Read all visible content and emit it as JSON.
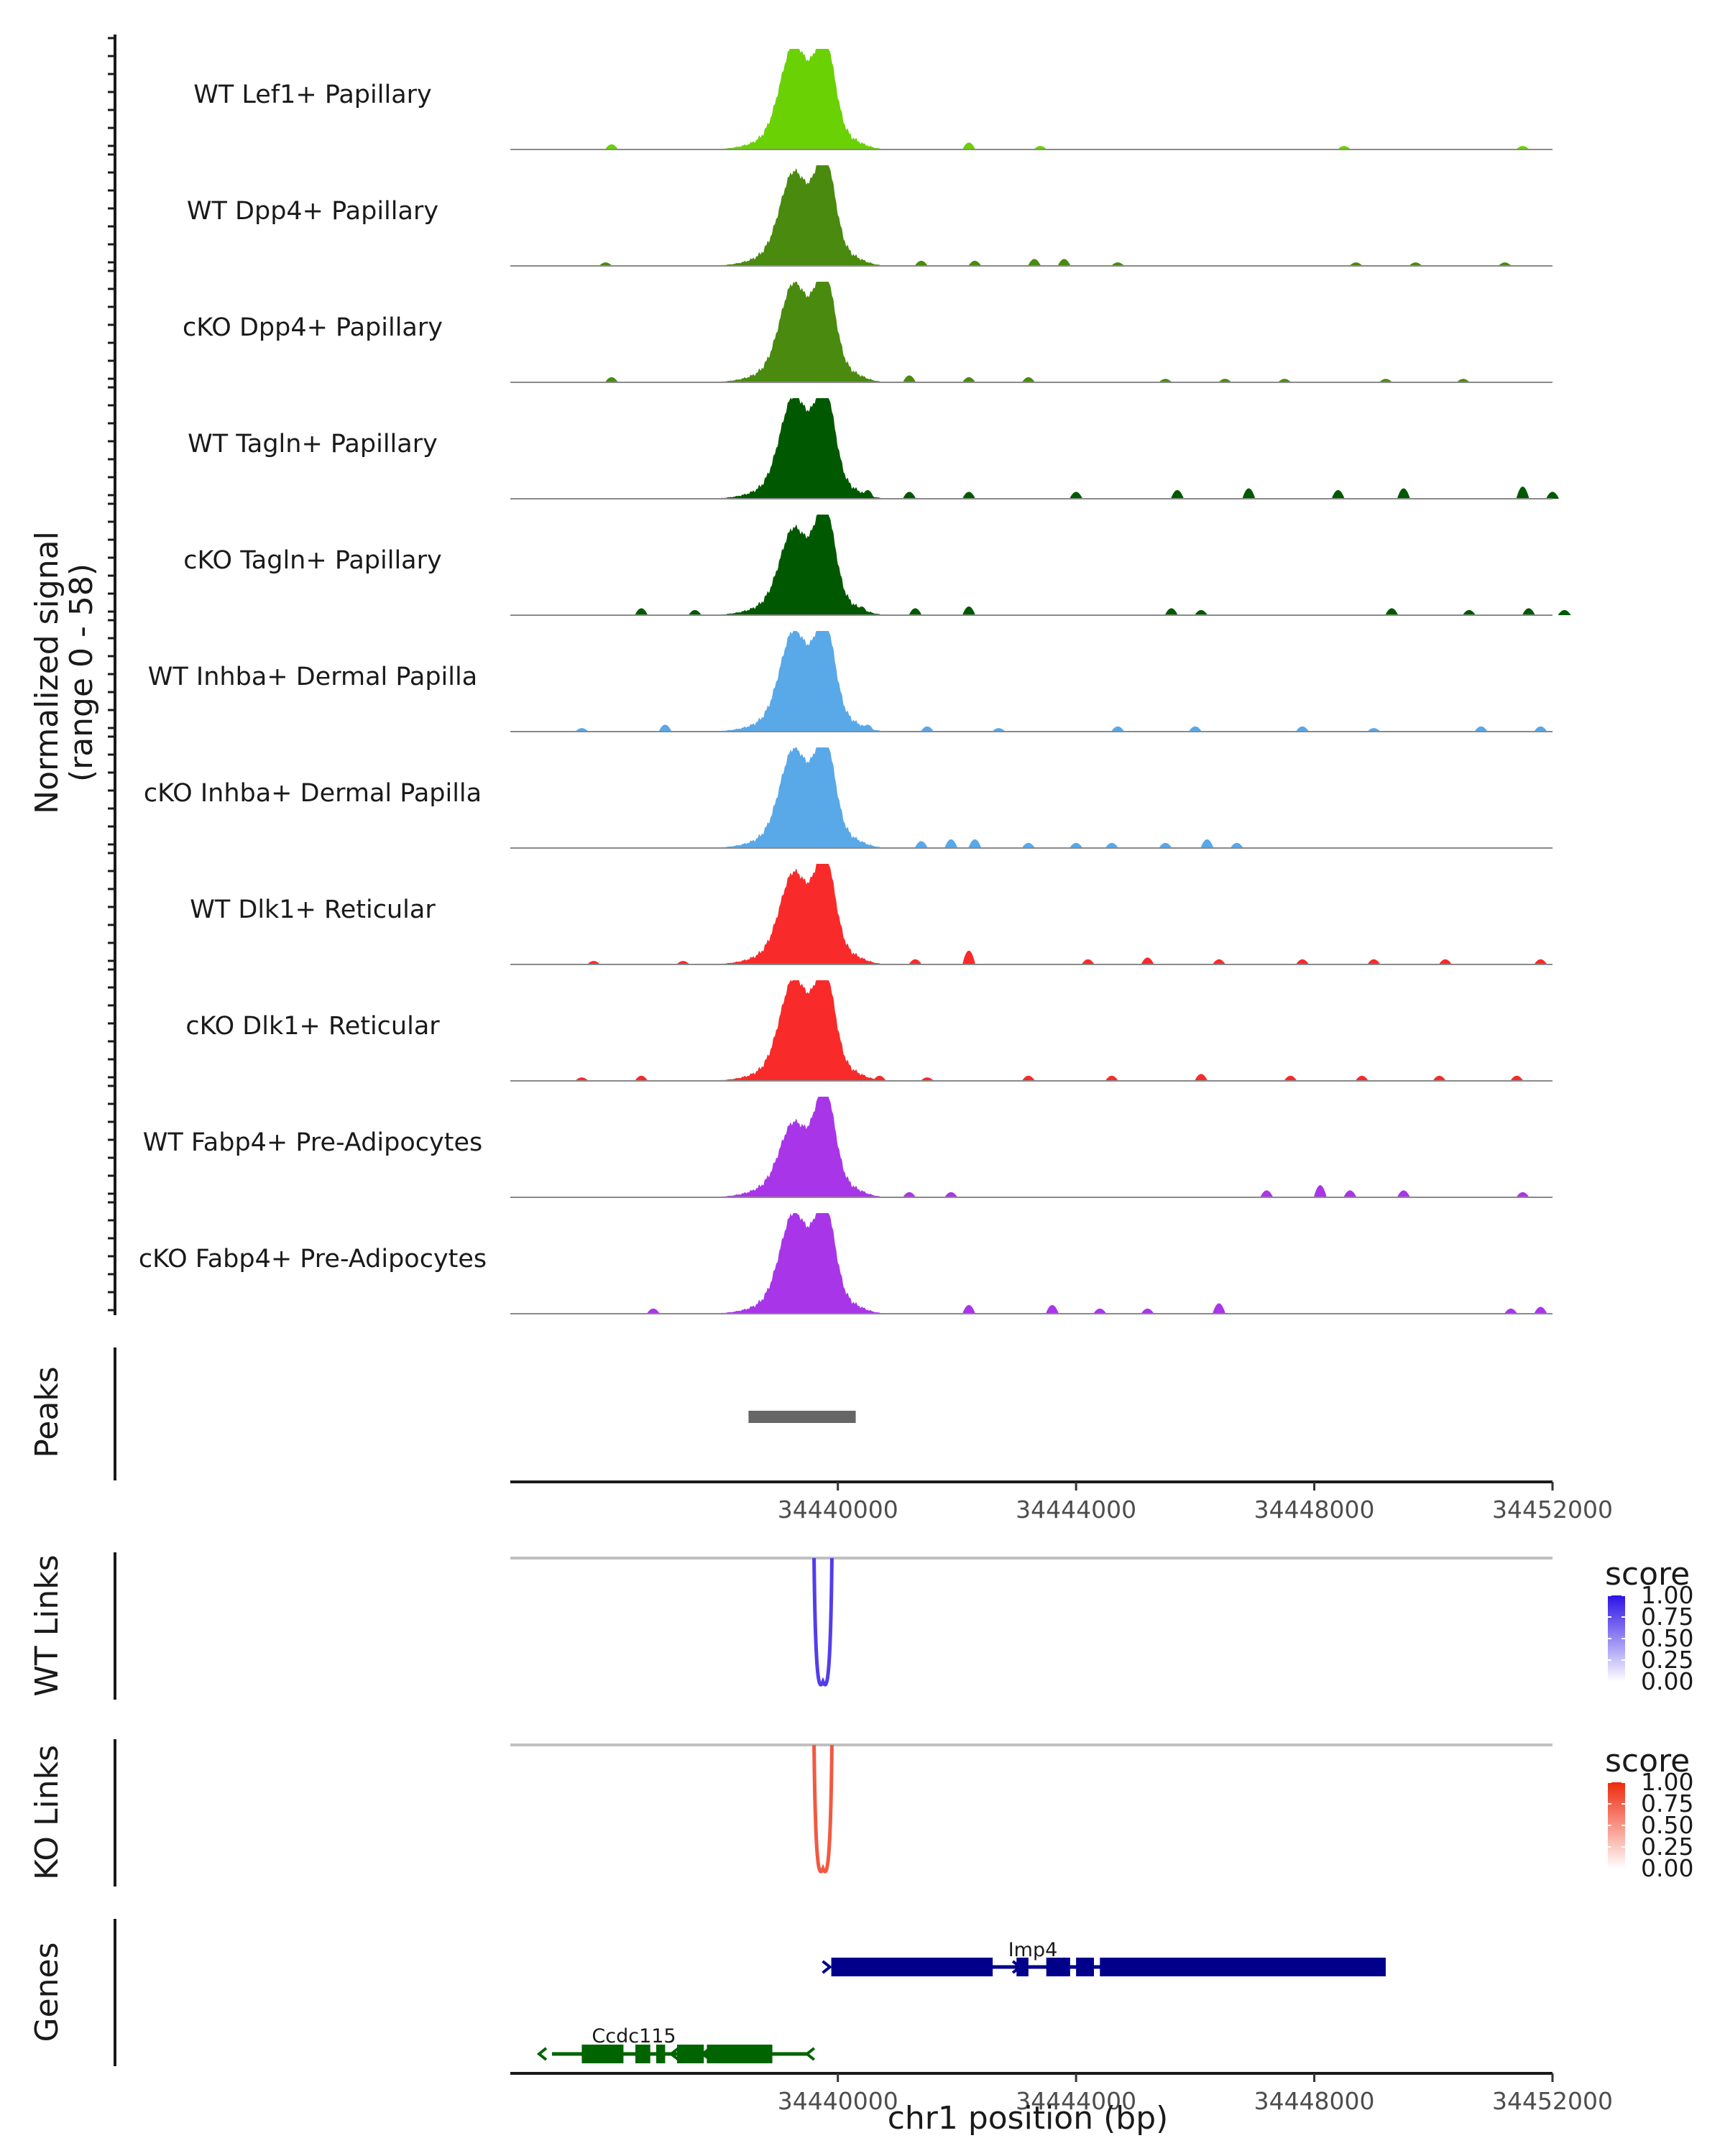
{
  "chart_data": {
    "type": "genome_coverage",
    "region": {
      "chromosome": "chr1",
      "start": 34434500,
      "end": 34452000
    },
    "coverage": {
      "ylabel": "Normalized signal",
      "ylabel_range": "(range 0 - 58)",
      "ylim": [
        0,
        58
      ],
      "tracks": [
        {
          "name": "WT Lef1+ Papillary",
          "color": "#6ad104",
          "peak1": 54,
          "peak2": 58,
          "bg": [
            [
              34436200,
              3
            ],
            [
              34439600,
              4
            ],
            [
              34442200,
              4
            ],
            [
              34443400,
              2
            ],
            [
              34448500,
              2
            ],
            [
              34451500,
              2
            ]
          ]
        },
        {
          "name": "WT Dpp4+ Papillary",
          "color": "#4a8a0f",
          "peak1": 48,
          "peak2": 58,
          "bg": [
            [
              34436100,
              2
            ],
            [
              34440200,
              4
            ],
            [
              34441400,
              3
            ],
            [
              34442300,
              3
            ],
            [
              34443300,
              4
            ],
            [
              34443800,
              4
            ],
            [
              34444700,
              2
            ],
            [
              34448700,
              2
            ],
            [
              34449700,
              2
            ],
            [
              34451200,
              2
            ]
          ]
        },
        {
          "name": "cKO Dpp4+ Papillary",
          "color": "#4a8a0f",
          "peak1": 51,
          "peak2": 58,
          "bg": [
            [
              34436200,
              3
            ],
            [
              34439800,
              5
            ],
            [
              34441200,
              4
            ],
            [
              34442200,
              3
            ],
            [
              34443200,
              3
            ],
            [
              34445500,
              2
            ],
            [
              34446500,
              2
            ],
            [
              34447500,
              2
            ],
            [
              34449200,
              2
            ],
            [
              34450500,
              2
            ]
          ]
        },
        {
          "name": "WT Tagln+ Papillary",
          "color": "#005900",
          "peak1": 53,
          "peak2": 58,
          "bg": [
            [
              34438800,
              5
            ],
            [
              34439700,
              6
            ],
            [
              34440500,
              5
            ],
            [
              34441200,
              4
            ],
            [
              34442200,
              4
            ],
            [
              34444000,
              4
            ],
            [
              34445700,
              5
            ],
            [
              34446900,
              6
            ],
            [
              34448400,
              5
            ],
            [
              34449500,
              6
            ],
            [
              34451500,
              7
            ],
            [
              34452000,
              4
            ]
          ]
        },
        {
          "name": "cKO Tagln+ Papillary",
          "color": "#005900",
          "peak1": 44,
          "peak2": 58,
          "bg": [
            [
              34436700,
              4
            ],
            [
              34437600,
              3
            ],
            [
              34440400,
              5
            ],
            [
              34441300,
              4
            ],
            [
              34442200,
              5
            ],
            [
              34445600,
              4
            ],
            [
              34446100,
              3
            ],
            [
              34449300,
              4
            ],
            [
              34450600,
              3
            ],
            [
              34451600,
              4
            ],
            [
              34452200,
              3
            ]
          ]
        },
        {
          "name": "WT Inhba+ Dermal Papilla",
          "color": "#59a8e8",
          "peak1": 52,
          "peak2": 58,
          "bg": [
            [
              34435700,
              2
            ],
            [
              34437100,
              4
            ],
            [
              34440500,
              4
            ],
            [
              34441500,
              3
            ],
            [
              34442700,
              2
            ],
            [
              34444700,
              3
            ],
            [
              34446000,
              3
            ],
            [
              34447800,
              3
            ],
            [
              34449000,
              2
            ],
            [
              34450800,
              3
            ],
            [
              34451800,
              3
            ]
          ]
        },
        {
          "name": "cKO Inhba+ Dermal Papilla",
          "color": "#59a8e8",
          "peak1": 51,
          "peak2": 58,
          "bg": [
            [
              34439700,
              6
            ],
            [
              34440200,
              4
            ],
            [
              34441400,
              4
            ],
            [
              34441900,
              5
            ],
            [
              34442300,
              5
            ],
            [
              34443200,
              3
            ],
            [
              34444000,
              3
            ],
            [
              34444600,
              3
            ],
            [
              34445500,
              3
            ],
            [
              34446200,
              5
            ],
            [
              34446700,
              3
            ]
          ]
        },
        {
          "name": "WT Dlk1+ Reticular",
          "color": "#f82a2a",
          "peak1": 47,
          "peak2": 58,
          "bg": [
            [
              34435900,
              2
            ],
            [
              34437400,
              2
            ],
            [
              34438700,
              3
            ],
            [
              34440200,
              3
            ],
            [
              34441300,
              3
            ],
            [
              34442200,
              8
            ],
            [
              34444200,
              3
            ],
            [
              34445200,
              4
            ],
            [
              34446400,
              3
            ],
            [
              34447800,
              3
            ],
            [
              34449000,
              3
            ],
            [
              34450200,
              3
            ],
            [
              34451800,
              3
            ]
          ]
        },
        {
          "name": "cKO Dlk1+ Reticular",
          "color": "#f82a2a",
          "peak1": 53,
          "peak2": 58,
          "bg": [
            [
              34435700,
              2
            ],
            [
              34436700,
              3
            ],
            [
              34440700,
              3
            ],
            [
              34441500,
              2
            ],
            [
              34443200,
              3
            ],
            [
              34444600,
              3
            ],
            [
              34446100,
              4
            ],
            [
              34447600,
              3
            ],
            [
              34448800,
              3
            ],
            [
              34450100,
              3
            ],
            [
              34451400,
              3
            ]
          ]
        },
        {
          "name": "WT Fabp4+ Pre-Adipocytes",
          "color": "#a836e8",
          "peak1": 37,
          "peak2": 58,
          "bg": [
            [
              34438600,
              4
            ],
            [
              34441200,
              3
            ],
            [
              34441900,
              3
            ],
            [
              34447200,
              4
            ],
            [
              34448100,
              7
            ],
            [
              34448600,
              4
            ],
            [
              34449500,
              4
            ],
            [
              34451500,
              3
            ]
          ]
        },
        {
          "name": "cKO Fabp4+ Pre-Adipocytes",
          "color": "#a836e8",
          "peak1": 52,
          "peak2": 58,
          "bg": [
            [
              34436900,
              3
            ],
            [
              34438800,
              3
            ],
            [
              34442200,
              5
            ],
            [
              34443600,
              5
            ],
            [
              34444400,
              3
            ],
            [
              34445200,
              3
            ],
            [
              34446400,
              6
            ],
            [
              34451300,
              3
            ],
            [
              34451800,
              4
            ]
          ]
        }
      ]
    },
    "peaks": {
      "label": "Peaks",
      "color": "#666666",
      "regions": [
        {
          "start": 34438500,
          "end": 34440300
        }
      ]
    },
    "x_axis": {
      "ticks": [
        34440000,
        34444000,
        34448000,
        34452000
      ],
      "tick_labels": [
        "34440000",
        "34444000",
        "34448000",
        "34452000"
      ],
      "title": "chr1 position (bp)"
    },
    "links": [
      {
        "label": "WT Links",
        "link": {
          "start": 34439600,
          "end": 34439900,
          "score": 0.82
        },
        "legend": {
          "title": "score",
          "ticks": [
            "1.00",
            "0.75",
            "0.50",
            "0.25",
            "0.00"
          ],
          "color_low": "#ffffff",
          "color_high": "#2d12e6"
        }
      },
      {
        "label": "KO Links",
        "link": {
          "start": 34439600,
          "end": 34439900,
          "score": 0.78
        },
        "legend": {
          "title": "score",
          "ticks": [
            "1.00",
            "0.75",
            "0.50",
            "0.25",
            "0.00"
          ],
          "color_low": "#ffffff",
          "color_high": "#ee2a0c"
        }
      }
    ],
    "genes": {
      "label": "Genes",
      "items": [
        {
          "name": "Imp4",
          "strand": "+",
          "start": 34439890,
          "end": 34449200,
          "color": "#00008b",
          "exons": [
            [
              34439890,
              34442600
            ],
            [
              34443000,
              34443200
            ],
            [
              34443500,
              34443900
            ],
            [
              34444000,
              34444300
            ],
            [
              34444400,
              34449200
            ]
          ]
        },
        {
          "name": "Ccdc115",
          "strand": "-",
          "start": 34435200,
          "end": 34439500,
          "color": "#006400",
          "exons": [
            [
              34435700,
              34436400
            ],
            [
              34436600,
              34436850
            ],
            [
              34436950,
              34437100
            ],
            [
              34437300,
              34437750
            ],
            [
              34437800,
              34438900
            ]
          ]
        }
      ]
    }
  }
}
